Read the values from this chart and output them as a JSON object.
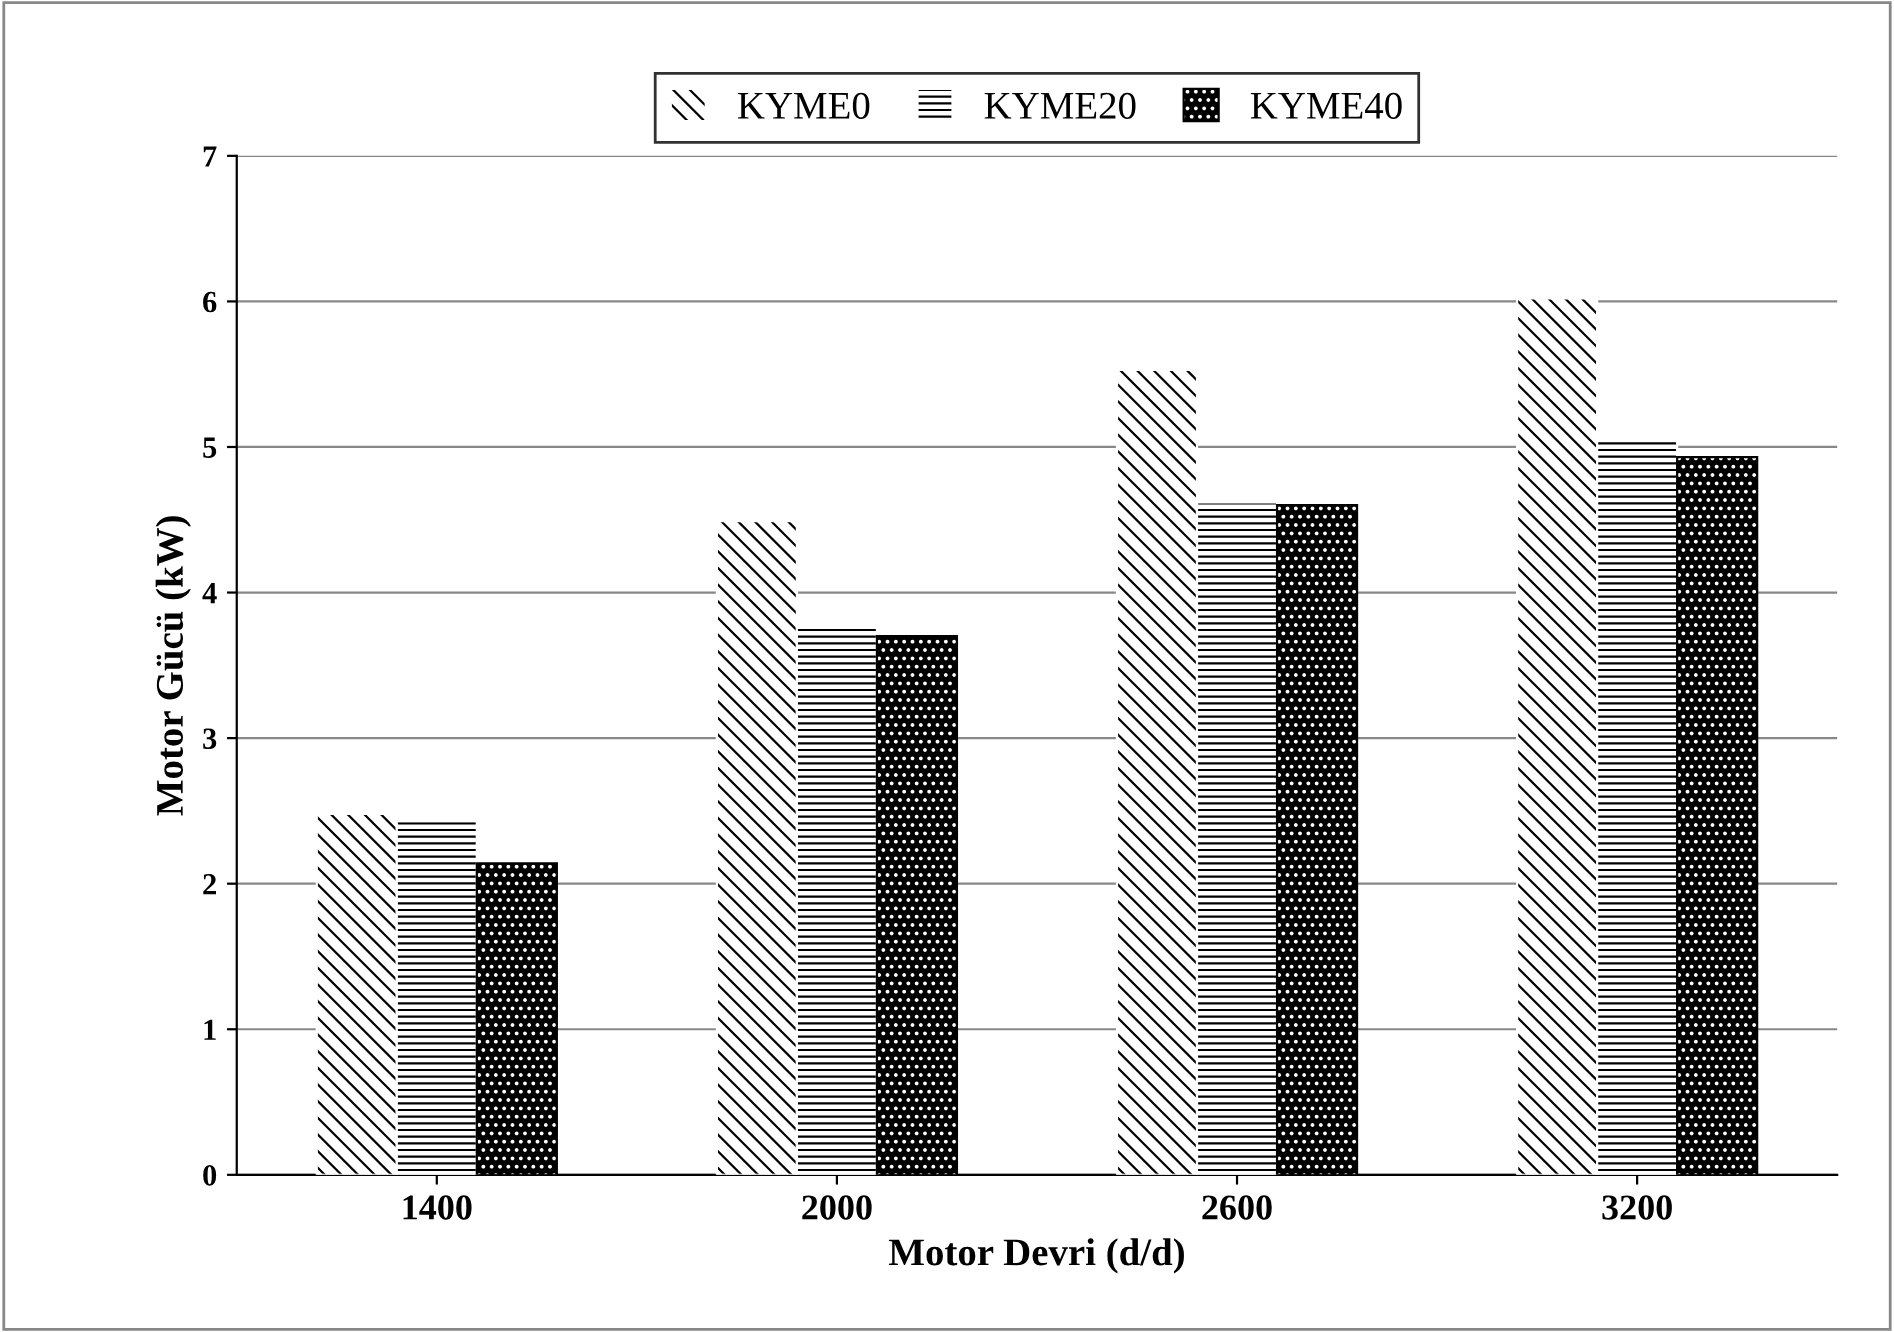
{
  "chart_data": {
    "type": "bar",
    "xlabel": "Motor Devri (d/d)",
    "ylabel": "Motor Gücü (kW)",
    "categories": [
      "1400",
      "2000",
      "2600",
      "3200"
    ],
    "series": [
      {
        "name": "KYME0",
        "color": "#ffffff",
        "values": [
          2.48,
          4.49,
          5.53,
          6.02
        ]
      },
      {
        "name": "KYME20",
        "color": "#ffffff",
        "values": [
          2.43,
          3.77,
          4.62,
          5.07
        ]
      },
      {
        "name": "KYME40",
        "color": "#000000",
        "values": [
          2.14,
          3.7,
          4.6,
          4.93
        ]
      }
    ],
    "ylim": [
      0,
      7
    ],
    "yticks": [
      0,
      1,
      2,
      3,
      4,
      5,
      6,
      7
    ],
    "grid": "y",
    "legend": "top"
  }
}
